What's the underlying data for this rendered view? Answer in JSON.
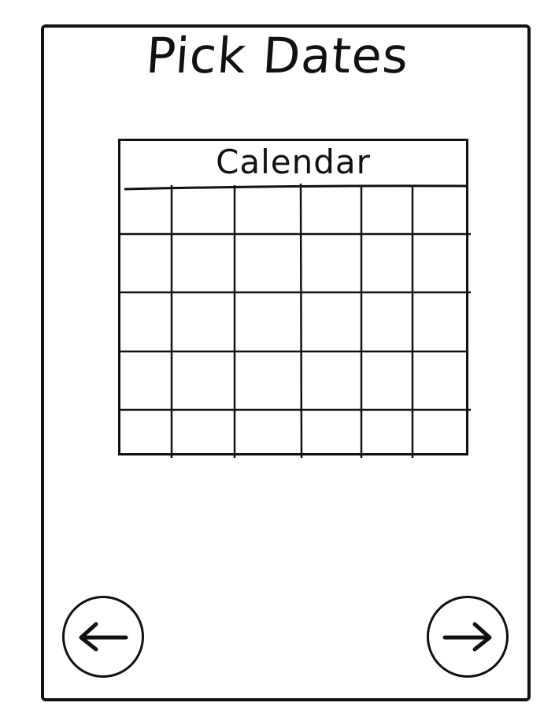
{
  "page": {
    "title": "Pick Dates"
  },
  "calendar": {
    "title": "Calendar",
    "columns": 6,
    "rows": 5
  },
  "navigation": {
    "back_icon": "arrow-left-icon",
    "next_icon": "arrow-right-icon"
  },
  "colors": {
    "ink": "#111111",
    "background": "#ffffff"
  }
}
